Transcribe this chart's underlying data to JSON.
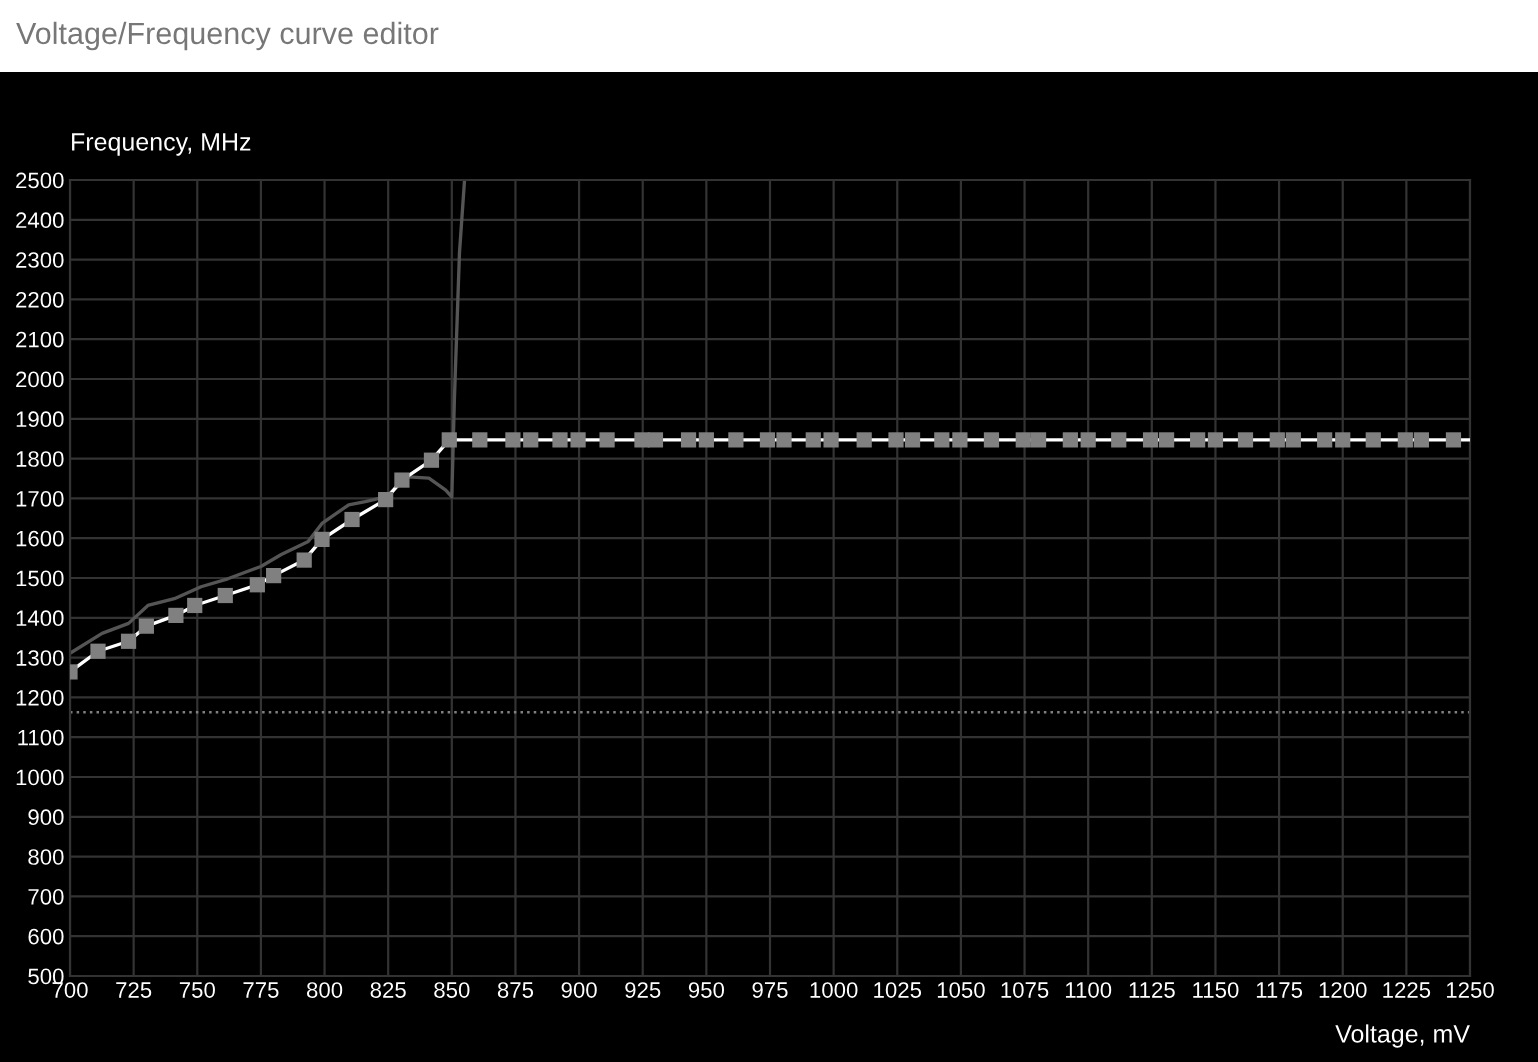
{
  "chart_data": {
    "type": "line",
    "title": "Voltage/Frequency curve editor",
    "xlabel": "Voltage, mV",
    "ylabel": "Frequency, MHz",
    "xlim": [
      700,
      1250
    ],
    "xticks": [
      700,
      725,
      750,
      775,
      800,
      825,
      850,
      875,
      900,
      925,
      950,
      975,
      1000,
      1025,
      1050,
      1075,
      1100,
      1125,
      1150,
      1175,
      1200,
      1225,
      1250
    ],
    "ylim": [
      500,
      2500
    ],
    "yticks": [
      500,
      600,
      700,
      800,
      900,
      1000,
      1100,
      1200,
      1300,
      1400,
      1500,
      1600,
      1700,
      1800,
      1900,
      2000,
      2100,
      2200,
      2300,
      2400,
      2500
    ],
    "grid": true,
    "legend": false,
    "ref_lines": [
      {
        "axis": "y",
        "value": 1163,
        "color": "#808080",
        "line_style": "dotted"
      }
    ],
    "series": [
      {
        "color": "#555555",
        "marker": "none",
        "x": [
          700,
          712.6,
          723,
          730.6,
          741,
          751.5,
          762,
          775,
          783,
          793.6,
          799,
          809.5,
          816,
          824,
          833,
          841,
          847.6,
          850,
          851,
          853,
          855
        ],
        "values": [
          1311,
          1361,
          1386,
          1431,
          1448,
          1478,
          1498,
          1529,
          1559,
          1592,
          1637,
          1684,
          1692,
          1704,
          1754,
          1751,
          1721,
          1704,
          1947,
          2316,
          2500
        ]
      },
      {
        "color": "#ffffff",
        "marker": "none",
        "x": [
          700,
          711,
          723,
          730,
          741.6,
          749,
          761,
          773.6,
          780,
          792,
          799,
          810.8,
          824,
          830.4,
          842,
          849,
          1250
        ],
        "values": [
          1264,
          1316,
          1341,
          1379,
          1406,
          1431,
          1456,
          1483,
          1506,
          1545,
          1597,
          1647,
          1697,
          1746,
          1796,
          1847,
          1847
        ]
      },
      {
        "type": "scatter",
        "color": "#808080",
        "marker": "square",
        "x": [
          700,
          711,
          723,
          730,
          741.6,
          749,
          761,
          773.6,
          780,
          792,
          799,
          810.8,
          824,
          830.4,
          842,
          849,
          861,
          874,
          881,
          892.5,
          899.6,
          911,
          924.7,
          930,
          943,
          950,
          961.6,
          974,
          980.5,
          992,
          999,
          1012,
          1024.5,
          1031,
          1042.5,
          1049.6,
          1062,
          1074.5,
          1080.5,
          1093,
          1100,
          1112,
          1124.5,
          1130.8,
          1143,
          1150,
          1161.8,
          1174.3,
          1180.6,
          1192.9,
          1200,
          1212,
          1224.6,
          1230.9,
          1243.5
        ],
        "values": [
          1264,
          1316,
          1341,
          1379,
          1406,
          1431,
          1456,
          1483,
          1506,
          1545,
          1597,
          1647,
          1697,
          1746,
          1796,
          1847,
          1847,
          1847,
          1847,
          1847,
          1847,
          1847,
          1847,
          1847,
          1847,
          1847,
          1847,
          1847,
          1847,
          1847,
          1847,
          1847,
          1847,
          1847,
          1847,
          1847,
          1847,
          1847,
          1847,
          1847,
          1847,
          1847,
          1847,
          1847,
          1847,
          1847,
          1847,
          1847,
          1847,
          1847,
          1847,
          1847,
          1847,
          1847,
          1847
        ]
      }
    ]
  }
}
